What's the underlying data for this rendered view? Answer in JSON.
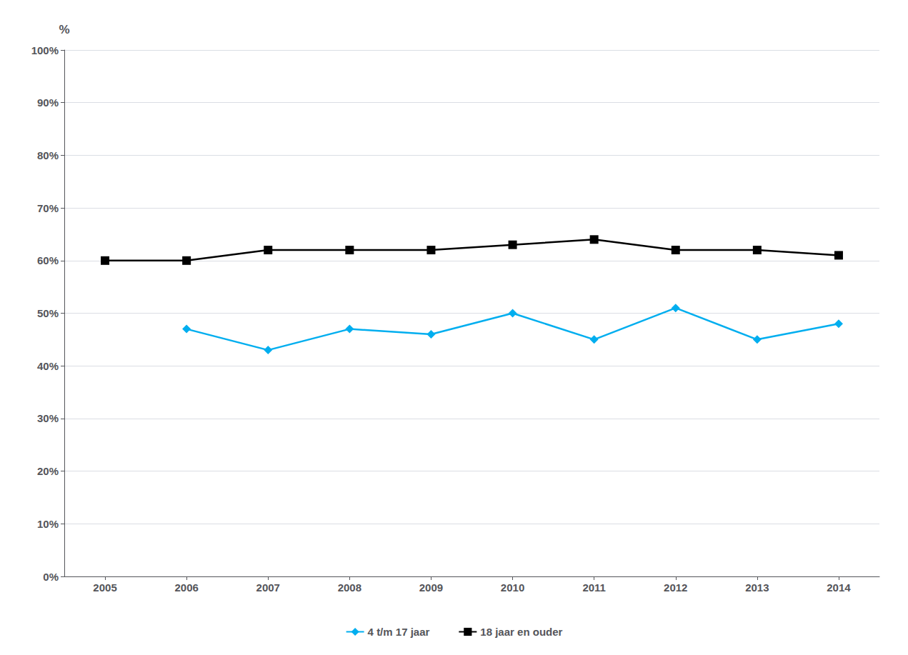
{
  "chart_data": {
    "type": "line",
    "x": [
      2005,
      2006,
      2007,
      2008,
      2009,
      2010,
      2011,
      2012,
      2013,
      2014
    ],
    "series": [
      {
        "name": "4 t/m 17 jaar",
        "color": "#00AEEF",
        "marker": "diamond",
        "values": [
          null,
          47,
          43,
          47,
          46,
          50,
          45,
          51,
          45,
          48
        ]
      },
      {
        "name": "18 jaar en ouder",
        "color": "#000000",
        "marker": "square",
        "values": [
          60,
          60,
          62,
          62,
          62,
          63,
          64,
          62,
          62,
          61
        ]
      }
    ],
    "ylabel": "%",
    "xlim": [
      2004.5,
      2014.5
    ],
    "xticks": [
      2005,
      2006,
      2007,
      2008,
      2009,
      2010,
      2011,
      2012,
      2013,
      2014
    ],
    "ylim": [
      0,
      100
    ],
    "yticks": [
      {
        "value": 0,
        "label": "0%"
      },
      {
        "value": 10,
        "label": "10%"
      },
      {
        "value": 20,
        "label": "20%"
      },
      {
        "value": 30,
        "label": "30%"
      },
      {
        "value": 40,
        "label": "40%"
      },
      {
        "value": 50,
        "label": "50%"
      },
      {
        "value": 60,
        "label": "60%"
      },
      {
        "value": 70,
        "label": "70%"
      },
      {
        "value": 80,
        "label": "80%"
      },
      {
        "value": 90,
        "label": "90%"
      },
      {
        "value": 100,
        "label": "100%"
      }
    ],
    "grid": true,
    "legend": "bottom"
  }
}
